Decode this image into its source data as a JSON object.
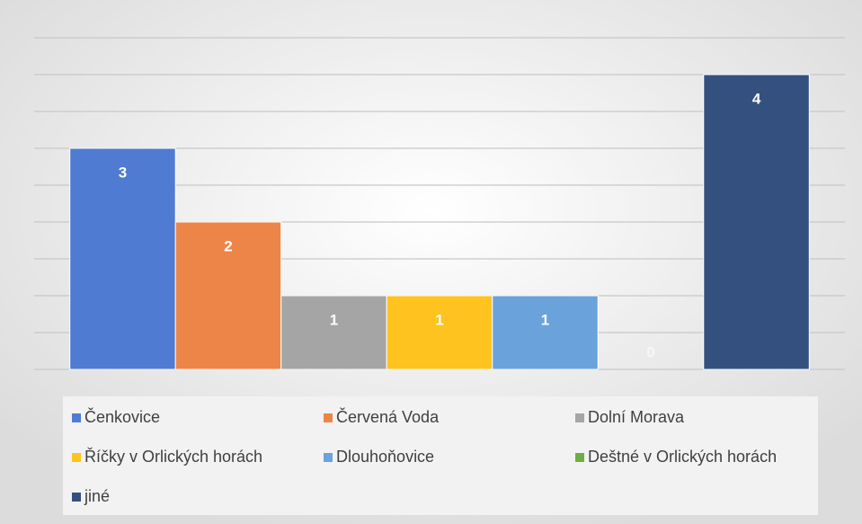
{
  "chart_data": {
    "type": "bar",
    "categories": [
      null
    ],
    "series": [
      {
        "name": "Čenkovice",
        "color": "#4f7bd3",
        "values": [
          3
        ]
      },
      {
        "name": "Červená Voda",
        "color": "#ed8549",
        "values": [
          2
        ]
      },
      {
        "name": "Dolní Morava",
        "color": "#a5a5a5",
        "values": [
          1
        ]
      },
      {
        "name": "Říčky v Orlických horách",
        "color": "#ffc31f",
        "values": [
          1
        ]
      },
      {
        "name": "Dlouhoňovice",
        "color": "#6aa3db",
        "values": [
          1
        ]
      },
      {
        "name": "Deštné v Orlických horách",
        "color": "#70ad47",
        "values": [
          0
        ]
      },
      {
        "name": "jiné",
        "color": "#34507f",
        "values": [
          4
        ]
      }
    ],
    "ylim": [
      0,
      4.5
    ],
    "yticks": [
      0,
      0.5,
      1,
      1.5,
      2,
      2.5,
      3,
      3.5,
      4,
      4.5
    ],
    "grid": true,
    "legend": "bottom"
  }
}
